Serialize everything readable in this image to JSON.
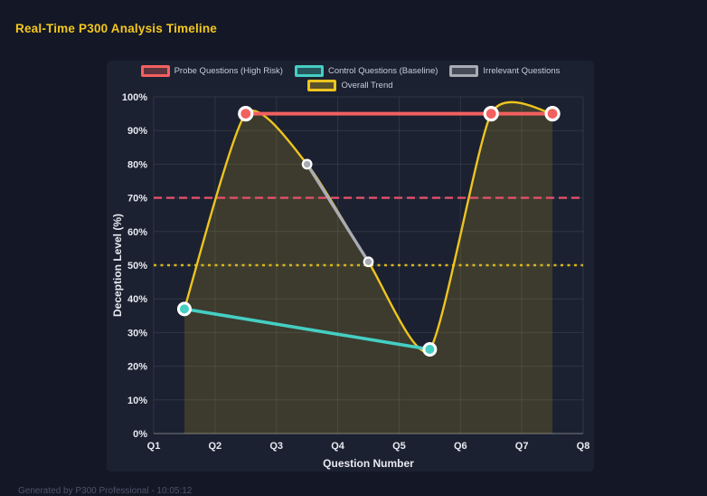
{
  "page": {
    "title": "Real-Time P300 Analysis Timeline",
    "footer_note": "Generated by P300 Professional - 10:05:12"
  },
  "colors": {
    "page_bg": "#141826",
    "card_bg": "#1b2130",
    "title": "#f3c71f",
    "grid": "rgba(255,255,255,0.09)",
    "axis_line": "rgba(255,255,255,0.28)",
    "tick_text": "#e7e9f0",
    "legend_text": "#c7ccd9",
    "footer_text": "#4b5368",
    "point_border": "#ffffff"
  },
  "chart_data": {
    "type": "line",
    "title": "Real-Time P300 Analysis Timeline",
    "xlabel": "Question Number",
    "ylabel": "Deception Level (%)",
    "x_tick_labels": [
      "Q1",
      "Q2",
      "Q3",
      "Q4",
      "Q5",
      "Q6",
      "Q7",
      "Q8"
    ],
    "y_tick_labels": [
      "0%",
      "10%",
      "20%",
      "30%",
      "40%",
      "50%",
      "60%",
      "70%",
      "80%",
      "90%",
      "100%"
    ],
    "xlim": [
      1,
      8
    ],
    "ylim": [
      0,
      100
    ],
    "grid": true,
    "legend_position": "top",
    "series": [
      {
        "name": "Overall Trend",
        "color": "#eec41f",
        "points": [
          [
            1.5,
            37
          ],
          [
            2.5,
            95
          ],
          [
            3.5,
            80
          ],
          [
            4.5,
            51
          ],
          [
            5.5,
            25
          ],
          [
            6.5,
            95
          ],
          [
            7.5,
            95
          ]
        ],
        "smooth": true,
        "fill": true,
        "fill_color": "rgba(238,196,31,0.16)",
        "line_width": 2.4,
        "point_radius": 0
      },
      {
        "name": "Control Questions (Baseline)",
        "color": "#45cec3",
        "points": [
          [
            1.5,
            37
          ],
          [
            5.5,
            25
          ]
        ],
        "smooth": false,
        "fill": false,
        "line_width": 3.6,
        "point_radius": 6.5
      },
      {
        "name": "Irrelevant Questions",
        "color": "#a9abb4",
        "points": [
          [
            3.5,
            80
          ],
          [
            4.5,
            51
          ]
        ],
        "smooth": false,
        "fill": false,
        "line_width": 3.4,
        "point_radius": 4.8
      },
      {
        "name": "Probe Questions (High Risk)",
        "color": "#f2605f",
        "points": [
          [
            2.5,
            95
          ],
          [
            6.5,
            95
          ],
          [
            7.5,
            95
          ]
        ],
        "smooth": false,
        "fill": false,
        "line_width": 4,
        "point_radius": 7
      }
    ],
    "legend_order": [
      "Probe Questions (High Risk)",
      "Control Questions (Baseline)",
      "Irrelevant Questions",
      "Overall Trend"
    ],
    "thresholds": [
      {
        "name": "high-risk-threshold",
        "y": 70,
        "color": "#e34f6b",
        "style": "dashed",
        "line_width": 2.4
      },
      {
        "name": "baseline-threshold",
        "y": 50,
        "color": "#d9b51c",
        "style": "dotted",
        "line_width": 2.4
      }
    ]
  }
}
